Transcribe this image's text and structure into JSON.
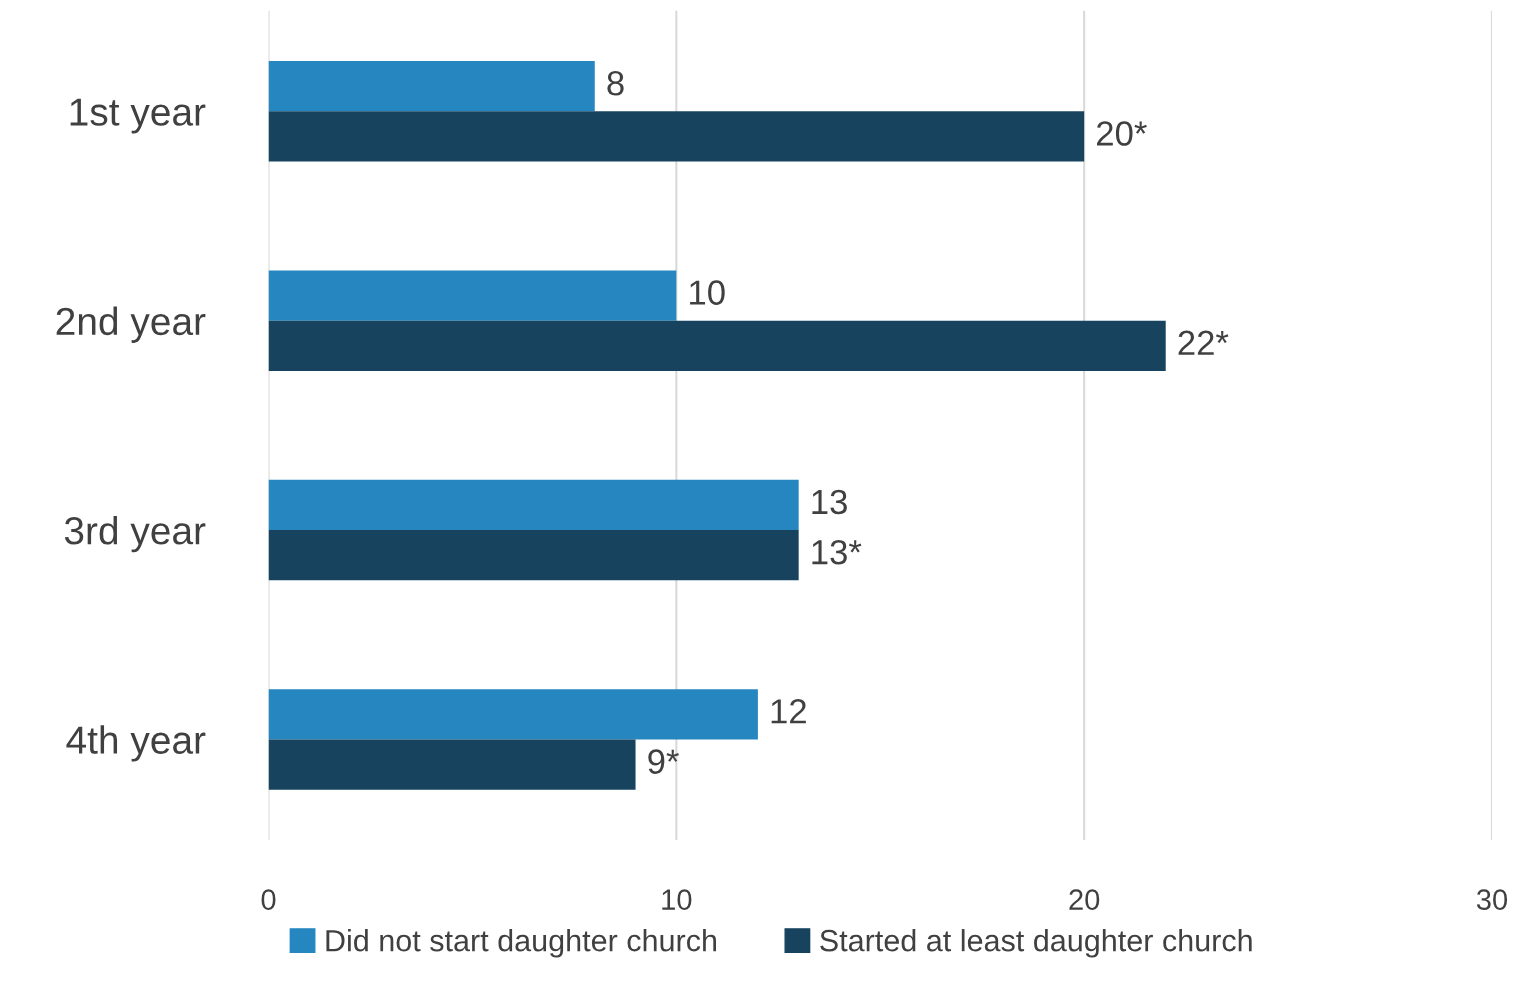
{
  "chart_data": {
    "type": "bar",
    "orientation": "horizontal",
    "categories": [
      "1st year",
      "2nd year",
      "3rd year",
      "4th year"
    ],
    "series": [
      {
        "name": "Did not start daughter church",
        "color": "#2586c0",
        "values": [
          8,
          10,
          13,
          12
        ],
        "value_labels": [
          "8",
          "10",
          "13",
          "12"
        ]
      },
      {
        "name": "Started at least daughter church",
        "color": "#17435f",
        "values": [
          20,
          22,
          13,
          9
        ],
        "value_labels": [
          "20*",
          "22*",
          "13*",
          "9*"
        ]
      }
    ],
    "xlim": [
      0,
      30
    ],
    "xticks": [
      0,
      10,
      20,
      30
    ],
    "grid": "x",
    "legend": "bottom"
  }
}
